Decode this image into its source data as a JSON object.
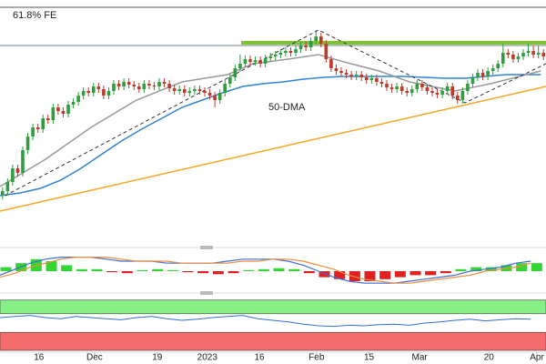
{
  "chart_data": [
    {
      "type": "candlestick",
      "xlim": [
        0,
        108
      ],
      "ylim": [
        0,
        270
      ],
      "up_color": "#2e9e3e",
      "down_color": "#c0392b",
      "ohlc": [
        [
          55,
          64,
          51,
          60
        ],
        [
          60,
          74,
          56,
          70
        ],
        [
          70,
          89,
          66,
          85
        ],
        [
          85,
          89,
          76,
          80
        ],
        [
          80,
          109,
          76,
          105
        ],
        [
          105,
          124,
          101,
          120
        ],
        [
          120,
          134,
          116,
          130
        ],
        [
          130,
          134,
          124,
          128
        ],
        [
          128,
          144,
          124,
          140
        ],
        [
          140,
          144,
          134,
          138
        ],
        [
          138,
          156,
          134,
          152
        ],
        [
          152,
          156,
          144,
          148
        ],
        [
          148,
          152,
          141,
          145
        ],
        [
          145,
          159,
          141,
          155
        ],
        [
          155,
          162,
          151,
          158
        ],
        [
          158,
          169,
          154,
          165
        ],
        [
          165,
          174,
          161,
          170
        ],
        [
          170,
          174,
          164,
          168
        ],
        [
          168,
          179,
          164,
          175
        ],
        [
          175,
          179,
          168,
          172
        ],
        [
          172,
          176,
          161,
          165
        ],
        [
          165,
          174,
          161,
          170
        ],
        [
          170,
          182,
          166,
          178
        ],
        [
          178,
          182,
          171,
          175
        ],
        [
          175,
          184,
          171,
          180
        ],
        [
          180,
          184,
          173,
          177
        ],
        [
          177,
          181,
          171,
          175
        ],
        [
          175,
          179,
          168,
          172
        ],
        [
          172,
          182,
          168,
          178
        ],
        [
          178,
          182,
          172,
          176
        ],
        [
          176,
          180,
          171,
          175
        ],
        [
          175,
          184,
          171,
          180
        ],
        [
          180,
          184,
          174,
          178
        ],
        [
          178,
          182,
          169,
          173
        ],
        [
          173,
          177,
          166,
          170
        ],
        [
          170,
          176,
          166,
          172
        ],
        [
          172,
          176,
          164,
          168
        ],
        [
          168,
          174,
          164,
          170
        ],
        [
          170,
          176,
          166,
          172
        ],
        [
          172,
          176,
          166,
          170
        ],
        [
          170,
          174,
          164,
          168
        ],
        [
          168,
          172,
          161,
          165
        ],
        [
          165,
          169,
          152,
          160
        ],
        [
          160,
          172,
          156,
          168
        ],
        [
          168,
          182,
          164,
          178
        ],
        [
          178,
          189,
          174,
          185
        ],
        [
          185,
          199,
          181,
          195
        ],
        [
          195,
          210,
          191,
          200
        ],
        [
          200,
          209,
          196,
          205
        ],
        [
          205,
          209,
          198,
          202
        ],
        [
          202,
          208,
          198,
          204
        ],
        [
          204,
          208,
          196,
          200
        ],
        [
          200,
          210,
          196,
          206
        ],
        [
          206,
          212,
          202,
          208
        ],
        [
          208,
          214,
          204,
          210
        ],
        [
          210,
          216,
          206,
          212
        ],
        [
          212,
          218,
          208,
          214
        ],
        [
          214,
          218,
          208,
          212
        ],
        [
          212,
          220,
          208,
          216
        ],
        [
          216,
          224,
          212,
          220
        ],
        [
          220,
          224,
          214,
          218
        ],
        [
          218,
          229,
          214,
          225
        ],
        [
          225,
          237,
          221,
          230
        ],
        [
          230,
          234,
          218,
          222
        ],
        [
          222,
          226,
          201,
          205
        ],
        [
          205,
          209,
          191,
          195
        ],
        [
          195,
          199,
          188,
          192
        ],
        [
          192,
          196,
          186,
          190
        ],
        [
          190,
          194,
          184,
          188
        ],
        [
          188,
          192,
          182,
          186
        ],
        [
          186,
          192,
          182,
          188
        ],
        [
          188,
          192,
          181,
          185
        ],
        [
          185,
          189,
          178,
          182
        ],
        [
          182,
          188,
          178,
          184
        ],
        [
          184,
          188,
          176,
          180
        ],
        [
          180,
          184,
          174,
          178
        ],
        [
          178,
          182,
          170,
          174
        ],
        [
          174,
          178,
          168,
          172
        ],
        [
          172,
          179,
          168,
          175
        ],
        [
          175,
          179,
          166,
          170
        ],
        [
          170,
          174,
          164,
          168
        ],
        [
          168,
          176,
          164,
          172
        ],
        [
          172,
          182,
          168,
          178
        ],
        [
          178,
          182,
          170,
          174
        ],
        [
          174,
          178,
          166,
          170
        ],
        [
          170,
          174,
          164,
          168
        ],
        [
          168,
          172,
          162,
          166
        ],
        [
          166,
          174,
          162,
          170
        ],
        [
          170,
          179,
          166,
          175
        ],
        [
          175,
          179,
          161,
          165
        ],
        [
          165,
          169,
          156,
          160
        ],
        [
          160,
          174,
          156,
          170
        ],
        [
          170,
          182,
          166,
          178
        ],
        [
          178,
          189,
          174,
          185
        ],
        [
          185,
          194,
          181,
          190
        ],
        [
          190,
          194,
          182,
          186
        ],
        [
          186,
          196,
          182,
          192
        ],
        [
          192,
          199,
          188,
          195
        ],
        [
          195,
          204,
          191,
          200
        ],
        [
          200,
          222,
          196,
          212
        ],
        [
          212,
          216,
          206,
          210
        ],
        [
          210,
          214,
          201,
          205
        ],
        [
          205,
          212,
          201,
          208
        ],
        [
          208,
          216,
          204,
          212
        ],
        [
          212,
          222,
          208,
          214
        ],
        [
          214,
          220,
          206,
          210
        ],
        [
          210,
          220,
          206,
          212
        ],
        [
          212,
          216,
          204,
          208
        ]
      ],
      "series": [
        {
          "name": "50-DMA",
          "color": "#2f83d6",
          "x": [
            0,
            4,
            8,
            12,
            16,
            20,
            24,
            28,
            32,
            36,
            40,
            44,
            48,
            52,
            56,
            60,
            64,
            68,
            72,
            76,
            80,
            84,
            88,
            92,
            96,
            100,
            104,
            107
          ],
          "values": [
            55,
            58,
            63,
            72,
            85,
            100,
            115,
            128,
            140,
            152,
            160,
            168,
            175,
            178,
            180,
            183,
            185,
            186,
            186,
            186,
            186,
            185,
            184,
            184,
            186,
            188,
            188,
            188
          ]
        },
        {
          "color": "#9a9a9a",
          "x": [
            0,
            9,
            18,
            27,
            36,
            45,
            50,
            57,
            63,
            68,
            75,
            81,
            90,
            97,
            107
          ],
          "values": [
            65,
            95,
            130,
            160,
            180,
            188,
            200,
            205,
            210,
            202,
            192,
            180,
            170,
            178,
            192
          ]
        },
        {
          "color": "#f5a623",
          "x": [
            0,
            108
          ],
          "values": [
            38,
            175
          ]
        },
        {
          "color": "#333333",
          "dash": true,
          "x": [
            1,
            63,
            92,
            108
          ],
          "values": [
            55,
            237,
            157,
            200
          ]
        }
      ],
      "levels": [
        {
          "value": 262,
          "label": "61.8% FE",
          "color": "#555555",
          "width": 1
        },
        {
          "value": 220,
          "color": "#6f7f95",
          "width": 1
        },
        {
          "value": 223,
          "from": 47.7,
          "color": "#7cc52a",
          "width": 4
        }
      ]
    },
    {
      "type": "bar",
      "xlim": [
        0,
        108
      ],
      "ylim": [
        -10,
        10
      ],
      "x": [
        0,
        3,
        6,
        9,
        12,
        15,
        18,
        21,
        24,
        27,
        30,
        33,
        36,
        39,
        42,
        45,
        48,
        51,
        54,
        57,
        60,
        63,
        66,
        69,
        72,
        75,
        78,
        81,
        84,
        87,
        90,
        93,
        96,
        99,
        102,
        105
      ],
      "series": [
        {
          "type": "bar",
          "color": "#33d633",
          "negative_color": "#e02020",
          "values": [
            2,
            4,
            6,
            5,
            3,
            1,
            1,
            -0.5,
            -1,
            0.5,
            1,
            0.5,
            -0.5,
            -1,
            -1.5,
            -1,
            0.5,
            1,
            1.5,
            1,
            -1,
            -3,
            -4,
            -5,
            -5,
            -4,
            -3,
            -2,
            -2,
            -1,
            1,
            2,
            2,
            3,
            4,
            4
          ]
        },
        {
          "type": "line",
          "color": "#3b6fd6",
          "values": [
            -2,
            1,
            4,
            6,
            7,
            7,
            7,
            6,
            5,
            5,
            5,
            4,
            4,
            4,
            4,
            5,
            6,
            6,
            6,
            5,
            3,
            0,
            -3,
            -5,
            -6,
            -6,
            -6,
            -5,
            -4,
            -3,
            -2,
            0,
            1,
            2,
            4,
            5
          ]
        },
        {
          "type": "line",
          "color": "#f28c3c",
          "values": [
            -3,
            -1,
            2,
            4,
            6,
            7,
            7,
            7,
            6,
            5,
            5,
            5,
            4,
            4,
            4,
            4,
            5,
            5,
            6,
            6,
            5,
            3,
            1,
            -2,
            -4,
            -5,
            -6,
            -6,
            -5,
            -4,
            -3,
            -2,
            0,
            1,
            2,
            4
          ]
        }
      ]
    },
    {
      "type": "line",
      "xlim": [
        0,
        108
      ],
      "ylim": [
        0,
        100
      ],
      "bands": [
        {
          "from": 67,
          "to": 92,
          "color": "#86f086"
        },
        {
          "from": 0,
          "to": 33,
          "color": "#f46c6c"
        }
      ],
      "x": [
        0,
        3,
        6,
        9,
        12,
        15,
        18,
        21,
        24,
        27,
        30,
        33,
        36,
        39,
        42,
        45,
        48,
        51,
        54,
        57,
        60,
        63,
        66,
        69,
        72,
        75,
        78,
        81,
        84,
        87,
        90,
        93,
        96,
        99,
        102,
        105
      ],
      "series": [
        {
          "color": "#2f6fd6",
          "values": [
            60,
            62,
            64,
            60,
            58,
            62,
            60,
            58,
            56,
            60,
            62,
            58,
            55,
            57,
            60,
            62,
            64,
            58,
            55,
            52,
            48,
            45,
            44,
            46,
            45,
            47,
            48,
            46,
            50,
            52,
            55,
            57,
            54,
            56,
            58,
            57
          ]
        }
      ],
      "xticks": [
        {
          "value": 7.7,
          "label": "16"
        },
        {
          "value": 18.7,
          "label": "Dec"
        },
        {
          "value": 31.1,
          "label": "19"
        },
        {
          "value": 41,
          "label": "2023"
        },
        {
          "value": 51.3,
          "label": "16"
        },
        {
          "value": 62.6,
          "label": "Feb"
        },
        {
          "value": 73,
          "label": "15"
        },
        {
          "value": 83,
          "label": "Mar"
        },
        {
          "value": 96.7,
          "label": "20"
        },
        {
          "value": 106.2,
          "label": "Apr"
        }
      ]
    }
  ]
}
